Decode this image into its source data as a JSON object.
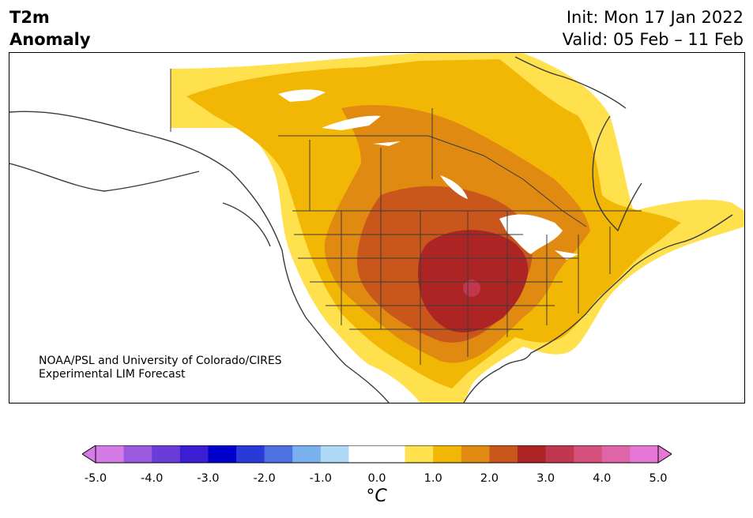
{
  "header": {
    "title_line1": "T2m",
    "title_line2": "Anomaly",
    "init": "Init: Mon 17 Jan 2022",
    "valid": "Valid: 05 Feb – 11 Feb"
  },
  "credit": {
    "line1": "NOAA/PSL and University of Colorado/CIRES",
    "line2": "Experimental LIM Forecast"
  },
  "colorbar": {
    "unit": "°C",
    "tick_labels": [
      "-5.0",
      "-4.0",
      "-3.0",
      "-2.0",
      "-1.0",
      "0.0",
      "1.0",
      "2.0",
      "3.0",
      "4.0",
      "5.0"
    ],
    "bins": [
      {
        "color": "#d57be6"
      },
      {
        "color": "#9b59e0"
      },
      {
        "color": "#6a3cd9"
      },
      {
        "color": "#3b1ed1"
      },
      {
        "color": "#0000cd"
      },
      {
        "color": "#2a3ad8"
      },
      {
        "color": "#4d71e0"
      },
      {
        "color": "#79b1ef"
      },
      {
        "color": "#add9f7"
      },
      {
        "color": "#ffffff"
      },
      {
        "color": "#ffffff"
      },
      {
        "color": "#ffe04d"
      },
      {
        "color": "#f2b705"
      },
      {
        "color": "#e08a12"
      },
      {
        "color": "#c9561a"
      },
      {
        "color": "#ad2424"
      },
      {
        "color": "#c0374f"
      },
      {
        "color": "#d44f7a"
      },
      {
        "color": "#df65a8"
      },
      {
        "color": "#e777d6"
      }
    ],
    "low_extend_color": "#d57be6",
    "high_extend_color": "#e777d6"
  },
  "map": {
    "anomaly_colors": {
      "plus_0_5": "#ffe04d",
      "plus_1_0": "#f2b705",
      "plus_1_5": "#e08a12",
      "plus_2_0": "#c9561a",
      "plus_2_5": "#ad2424",
      "plus_3_0": "#c0374f"
    },
    "coastline_color": "#3a3a3a",
    "border_color": "#3a3a3a"
  }
}
